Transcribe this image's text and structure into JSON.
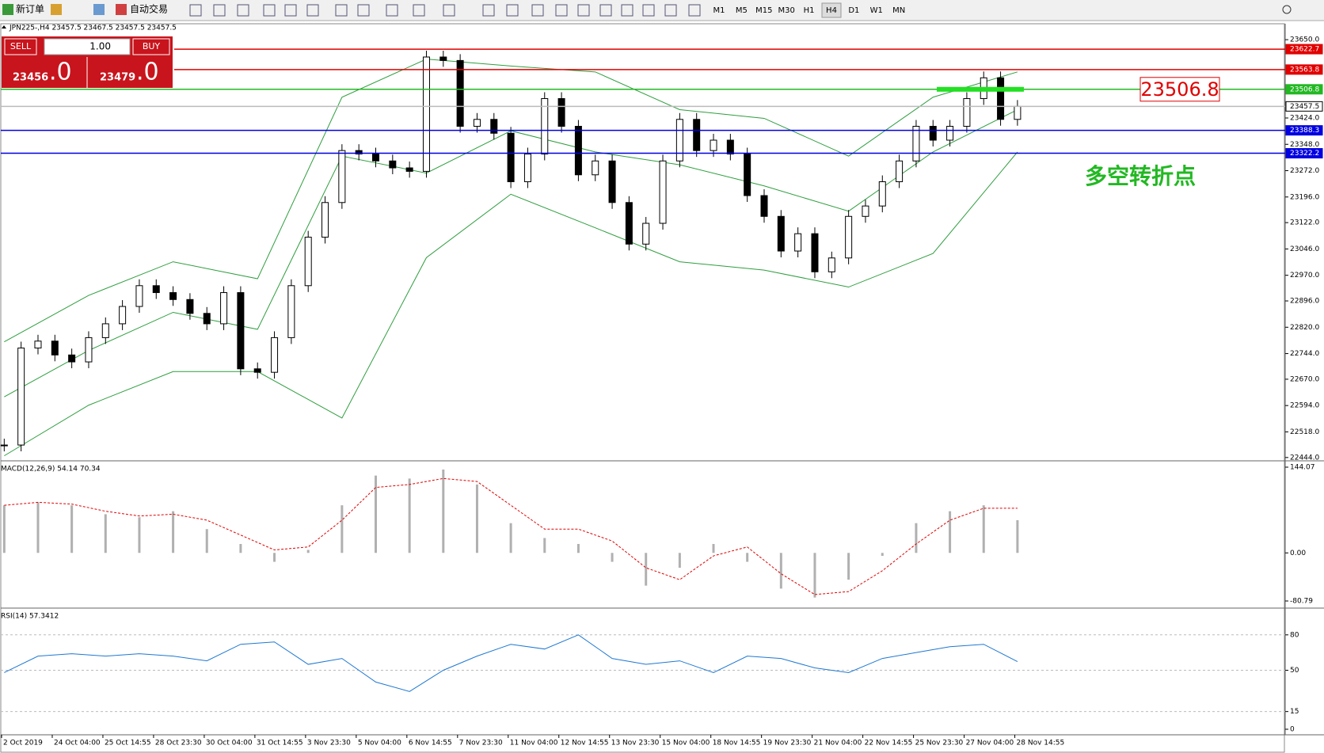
{
  "toolbar": {
    "new_order": "新订单",
    "auto_trade": "自动交易",
    "timeframes": [
      "M1",
      "M5",
      "M15",
      "M30",
      "H1",
      "H4",
      "D1",
      "W1",
      "MN"
    ],
    "active": "H4"
  },
  "trade_panel": {
    "sell": "SELL",
    "lots": "1.00",
    "buy": "BUY",
    "sell_price": "23456",
    "sell_frac": ".0",
    "buy_price": "23479",
    "buy_frac": ".0"
  },
  "chart_data": [
    {
      "type": "candlestick",
      "title": "JPN225-,H4  23457.5 23467.5 23457.5 23457.5",
      "close": [
        22480,
        22760,
        22780,
        22740,
        22720,
        22790,
        22830,
        22880,
        22940,
        22920,
        22900,
        22860,
        22830,
        22920,
        22700,
        22690,
        22790,
        22940,
        23080,
        23180,
        23330,
        23320,
        23300,
        23280,
        23270,
        23600,
        23590,
        23400,
        23420,
        23380,
        23240,
        23320,
        23480,
        23400,
        23260,
        23300,
        23180,
        23060,
        23120,
        23300,
        23420,
        23330,
        23360,
        23320,
        23200,
        23140,
        23040,
        23090,
        22980,
        23020,
        23140,
        23170,
        23240,
        23300,
        23400,
        23360,
        23400,
        23480,
        23540,
        23420,
        23457.5
      ],
      "bands": {
        "color": "#2e9e3e",
        "upper": [
          22778,
          22912,
          23009,
          22960,
          23484,
          23594,
          23574,
          23557,
          23448,
          23423,
          23314,
          23484,
          23557
        ],
        "middle": [
          22619,
          22753,
          22863,
          22814,
          23314,
          23265,
          23387,
          23326,
          23289,
          23228,
          23155,
          23326,
          23448
        ],
        "lower": [
          22449,
          22595,
          22692,
          22692,
          22558,
          23021,
          23204,
          23107,
          23009,
          22985,
          22936,
          23033,
          23326
        ]
      },
      "ylim": [
        22439,
        23696
      ],
      "yticks": [
        {
          "value": 23650,
          "label": "23650.0"
        },
        {
          "value": 23424,
          "label": "23424.0"
        },
        {
          "value": 23348,
          "label": "23348.0"
        },
        {
          "value": 23272,
          "label": "23272.0"
        },
        {
          "value": 23196,
          "label": "23196.0"
        },
        {
          "value": 23122,
          "label": "23122.0"
        },
        {
          "value": 23046,
          "label": "23046.0"
        },
        {
          "value": 22970,
          "label": "22970.0"
        },
        {
          "value": 22896,
          "label": "22896.0"
        },
        {
          "value": 22820,
          "label": "22820.0"
        },
        {
          "value": 22744,
          "label": "22744.0"
        },
        {
          "value": 22670,
          "label": "22670.0"
        },
        {
          "value": 22594,
          "label": "22594.0"
        },
        {
          "value": 22518,
          "label": "22518.0"
        },
        {
          "value": 22444,
          "label": "22444.0"
        }
      ],
      "levels": [
        {
          "value": 23622.7,
          "color": "#e00000"
        },
        {
          "value": 23563.8,
          "color": "#e00000"
        },
        {
          "value": 23506.8,
          "color": "#22b822"
        },
        {
          "value": 23457.5,
          "color": "#bbbbbb"
        },
        {
          "value": 23388.3,
          "color": "#0000e0"
        },
        {
          "value": 23322.2,
          "color": "#0000e0"
        }
      ],
      "annotation_value": 23506.8,
      "annotation_text": "多空转折点",
      "x_labels": [
        "2 Oct 2019",
        "24 Oct 04:00",
        "25 Oct 14:55",
        "28 Oct 23:30",
        "30 Oct 04:00",
        "31 Oct 14:55",
        "3 Nov 23:30",
        "5 Nov 04:00",
        "6 Nov 14:55",
        "7 Nov 23:30",
        "11 Nov 04:00",
        "12 Nov 14:55",
        "13 Nov 23:30",
        "15 Nov 04:00",
        "18 Nov 14:55",
        "19 Nov 23:30",
        "21 Nov 04:00",
        "22 Nov 14:55",
        "25 Nov 23:30",
        "27 Nov 04:00",
        "28 Nov 14:55"
      ]
    },
    {
      "type": "macd",
      "title": "MACD(12,26,9) 54.14 70.34",
      "ylim": [
        -80.79,
        144.07
      ],
      "yticks": [
        144.07,
        {
          "value": 0,
          "label": "0.00"
        },
        -80.79
      ],
      "histogram": [
        80,
        85,
        80,
        65,
        60,
        70,
        40,
        15,
        -15,
        5,
        80,
        130,
        125,
        140,
        115,
        50,
        25,
        15,
        -15,
        -55,
        -25,
        15,
        -15,
        -60,
        -75,
        -45,
        -5,
        50,
        70,
        80,
        55
      ],
      "signal": [
        80,
        85,
        82,
        70,
        62,
        65,
        55,
        30,
        5,
        10,
        55,
        110,
        115,
        125,
        120,
        80,
        40,
        40,
        20,
        -25,
        -45,
        -5,
        10,
        -35,
        -70,
        -65,
        -30,
        15,
        55,
        75,
        75
      ]
    },
    {
      "type": "rsi",
      "title": "RSI(14) 57.3412",
      "ylim": [
        0,
        100
      ],
      "yticks": [
        80,
        50,
        15,
        0
      ],
      "levels": [
        80,
        50,
        15
      ],
      "values": [
        48,
        62,
        64,
        62,
        64,
        62,
        58,
        72,
        74,
        55,
        60,
        40,
        32,
        50,
        62,
        72,
        68,
        80,
        60,
        55,
        58,
        48,
        62,
        60,
        52,
        48,
        60,
        65,
        70,
        72,
        57.34
      ]
    }
  ]
}
